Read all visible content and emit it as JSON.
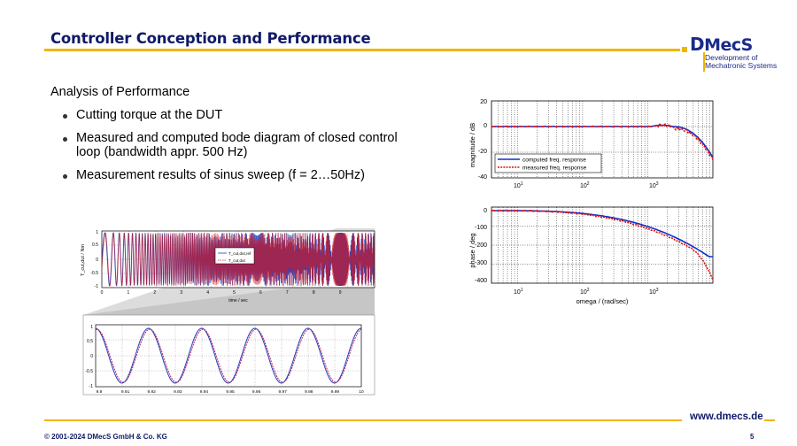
{
  "header": {
    "title": "Controller Conception and Performance",
    "logo": {
      "main_d": "D",
      "main_rest": "MecS",
      "line1": "Development of",
      "line2": "Mechatronic Systems"
    }
  },
  "content": {
    "heading": "Analysis of Performance",
    "bullets": [
      "Cutting torque at the DUT",
      "Measured and computed bode diagram of closed control loop (bandwidth appr. 500 Hz)",
      "Measurement results of sinus sweep (f = 2…50Hz)"
    ]
  },
  "colors": {
    "accent": "#f1b400",
    "brand": "#0f1a68",
    "computed": "#1030c8",
    "measured": "#e01010"
  },
  "bode": {
    "magnitude": {
      "ylabel": "magnitude / dB",
      "yticks": [
        "20",
        "0",
        "-20",
        "-40"
      ],
      "xticks": [
        {
          "base": "10",
          "exp": "1"
        },
        {
          "base": "10",
          "exp": "2"
        },
        {
          "base": "10",
          "exp": "3"
        }
      ],
      "legend": [
        "computed freq. response",
        "measured freq. response"
      ]
    },
    "phase": {
      "ylabel": "phase / deg",
      "yticks": [
        "0",
        "-100",
        "-200",
        "-300",
        "-400"
      ],
      "xticks": [
        {
          "base": "10",
          "exp": "1"
        },
        {
          "base": "10",
          "exp": "2"
        },
        {
          "base": "10",
          "exp": "3"
        }
      ],
      "xlabel": "omega / (rad/sec)"
    }
  },
  "sweep": {
    "ylabel": "T_cut,dut / Nm",
    "yticks": [
      "1",
      "0.5",
      "0",
      "-0.5",
      "-1"
    ],
    "xticks": [
      "0",
      "1",
      "2",
      "3",
      "4",
      "5",
      "6",
      "7",
      "8",
      "9"
    ],
    "xlabel": "time / sec",
    "legend": [
      "T_cut,dut,ref",
      "T_cut,dut"
    ]
  },
  "zoom": {
    "yticks": [
      "1",
      "0.5",
      "0",
      "-0.5",
      "-1"
    ],
    "xticks": [
      "9.9",
      "9.91",
      "9.92",
      "9.93",
      "9.94",
      "9.95",
      "9.96",
      "9.97",
      "9.98",
      "9.99",
      "10"
    ]
  },
  "footer": {
    "url": "www.dmecs.de",
    "copyright": "© 2001-2024 DMecS GmbH & Co. KG",
    "page": "5"
  }
}
